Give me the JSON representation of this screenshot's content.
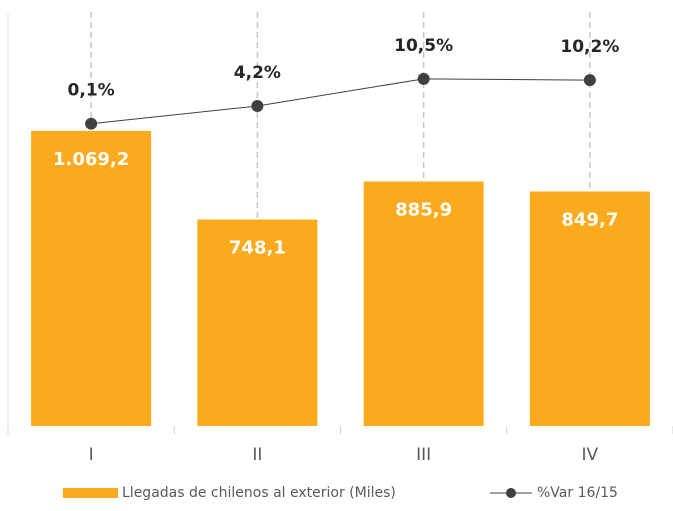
{
  "chart_data": {
    "type": "bar",
    "categories": [
      "I",
      "II",
      "III",
      "IV"
    ],
    "series": [
      {
        "name": "Llegadas de chilenos al exterior (Miles)",
        "type": "bar",
        "color": "#fbaa1d",
        "values": [
          1069.2,
          748.1,
          885.9,
          849.7
        ],
        "value_labels": [
          "1.069,2",
          "748,1",
          "885,9",
          "849,7"
        ]
      },
      {
        "name": "%Var 16/15",
        "type": "line",
        "axis": "y2",
        "color": "#404040",
        "values": [
          0.1,
          4.2,
          10.5,
          10.2
        ],
        "value_labels": [
          "0,1%",
          "4,2%",
          "10,5%",
          "10,2%"
        ]
      }
    ],
    "ylim": [
      0,
      1500
    ],
    "y2lim": [
      -70,
      26
    ],
    "grid": true,
    "legend": "bottom"
  }
}
